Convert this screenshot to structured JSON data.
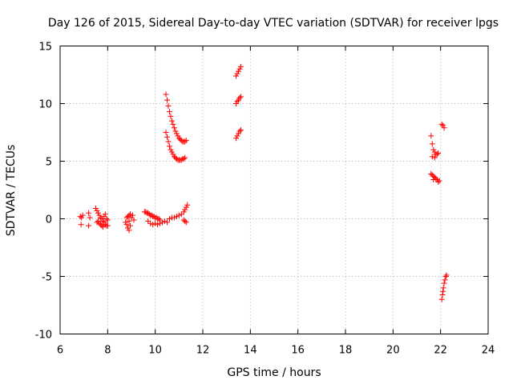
{
  "chart_data": {
    "type": "scatter",
    "title": "Day 126 of 2015, Sidereal Day-to-day VTEC variation (SDTVAR) for receiver lpgs",
    "xlabel": "GPS time / hours",
    "ylabel": "SDTVAR / TECUs",
    "xlim": [
      6,
      24
    ],
    "ylim": [
      -10,
      15
    ],
    "xticks": [
      6,
      8,
      10,
      12,
      14,
      16,
      18,
      20,
      22,
      24
    ],
    "yticks": [
      -10,
      -5,
      0,
      5,
      10,
      15
    ],
    "grid": true,
    "marker": "plus",
    "series": [
      {
        "name": "SDTVAR",
        "color": "#ff0000",
        "points": [
          [
            6.85,
            0.2
          ],
          [
            6.9,
            0.1
          ],
          [
            6.88,
            -0.5
          ],
          [
            6.95,
            0.3
          ],
          [
            7.2,
            0.5
          ],
          [
            7.2,
            -0.6
          ],
          [
            7.25,
            0.1
          ],
          [
            7.5,
            0.9
          ],
          [
            7.55,
            0.7
          ],
          [
            7.6,
            0.5
          ],
          [
            7.65,
            0.3
          ],
          [
            7.7,
            0.1
          ],
          [
            7.75,
            0.0
          ],
          [
            7.8,
            -0.2
          ],
          [
            7.85,
            -0.3
          ],
          [
            7.9,
            -0.5
          ],
          [
            7.95,
            -0.6
          ],
          [
            8.0,
            -0.6
          ],
          [
            7.55,
            -0.3
          ],
          [
            7.6,
            -0.2
          ],
          [
            7.65,
            -0.4
          ],
          [
            7.7,
            -0.5
          ],
          [
            7.75,
            -0.6
          ],
          [
            7.8,
            -0.7
          ],
          [
            7.85,
            0.2
          ],
          [
            7.9,
            0.4
          ],
          [
            7.95,
            0.0
          ],
          [
            8.0,
            -0.1
          ],
          [
            8.75,
            -0.3
          ],
          [
            8.8,
            -0.5
          ],
          [
            8.85,
            -0.8
          ],
          [
            8.9,
            -1.0
          ],
          [
            8.95,
            -0.6
          ],
          [
            8.8,
            0.1
          ],
          [
            8.85,
            0.2
          ],
          [
            8.9,
            0.3
          ],
          [
            8.95,
            0.4
          ],
          [
            9.0,
            0.1
          ],
          [
            9.05,
            0.3
          ],
          [
            9.1,
            -0.1
          ],
          [
            8.9,
            -0.2
          ],
          [
            9.55,
            0.6
          ],
          [
            9.6,
            0.6
          ],
          [
            9.65,
            0.5
          ],
          [
            9.7,
            0.5
          ],
          [
            9.75,
            0.4
          ],
          [
            9.8,
            0.3
          ],
          [
            9.85,
            0.3
          ],
          [
            9.9,
            0.2
          ],
          [
            9.95,
            0.2
          ],
          [
            10.0,
            0.1
          ],
          [
            10.05,
            0.1
          ],
          [
            10.1,
            0.0
          ],
          [
            10.15,
            0.0
          ],
          [
            10.2,
            -0.1
          ],
          [
            9.7,
            -0.2
          ],
          [
            9.8,
            -0.4
          ],
          [
            9.9,
            -0.5
          ],
          [
            10.0,
            -0.4
          ],
          [
            10.1,
            -0.5
          ],
          [
            10.2,
            -0.4
          ],
          [
            10.3,
            -0.3
          ],
          [
            10.4,
            -0.2
          ],
          [
            10.5,
            -0.3
          ],
          [
            10.6,
            0.0
          ],
          [
            10.7,
            0.1
          ],
          [
            10.8,
            0.1
          ],
          [
            10.9,
            0.2
          ],
          [
            11.0,
            0.3
          ],
          [
            11.1,
            0.4
          ],
          [
            11.2,
            0.6
          ],
          [
            11.25,
            0.8
          ],
          [
            11.3,
            1.0
          ],
          [
            11.35,
            1.2
          ],
          [
            11.2,
            -0.1
          ],
          [
            11.25,
            -0.2
          ],
          [
            11.3,
            -0.3
          ],
          [
            10.45,
            10.8
          ],
          [
            10.5,
            10.3
          ],
          [
            10.55,
            9.8
          ],
          [
            10.6,
            9.3
          ],
          [
            10.65,
            8.9
          ],
          [
            10.7,
            8.5
          ],
          [
            10.75,
            8.2
          ],
          [
            10.8,
            7.9
          ],
          [
            10.85,
            7.6
          ],
          [
            10.9,
            7.4
          ],
          [
            10.95,
            7.2
          ],
          [
            11.0,
            7.0
          ],
          [
            11.05,
            6.9
          ],
          [
            11.1,
            6.8
          ],
          [
            11.15,
            6.7
          ],
          [
            11.2,
            6.7
          ],
          [
            11.25,
            6.7
          ],
          [
            11.3,
            6.8
          ],
          [
            10.45,
            7.5
          ],
          [
            10.5,
            7.1
          ],
          [
            10.55,
            6.7
          ],
          [
            10.6,
            6.3
          ],
          [
            10.65,
            6.0
          ],
          [
            10.7,
            5.8
          ],
          [
            10.75,
            5.6
          ],
          [
            10.8,
            5.4
          ],
          [
            10.85,
            5.3
          ],
          [
            10.9,
            5.2
          ],
          [
            10.95,
            5.1
          ],
          [
            11.0,
            5.1
          ],
          [
            11.05,
            5.1
          ],
          [
            11.1,
            5.1
          ],
          [
            11.15,
            5.2
          ],
          [
            11.2,
            5.2
          ],
          [
            11.25,
            5.3
          ],
          [
            13.4,
            12.4
          ],
          [
            13.45,
            12.6
          ],
          [
            13.5,
            12.8
          ],
          [
            13.55,
            13.0
          ],
          [
            13.6,
            13.2
          ],
          [
            13.4,
            10.0
          ],
          [
            13.45,
            10.2
          ],
          [
            13.5,
            10.3
          ],
          [
            13.55,
            10.5
          ],
          [
            13.6,
            10.6
          ],
          [
            13.4,
            7.0
          ],
          [
            13.45,
            7.2
          ],
          [
            13.5,
            7.4
          ],
          [
            13.55,
            7.6
          ],
          [
            13.6,
            7.7
          ],
          [
            21.6,
            7.2
          ],
          [
            21.65,
            6.5
          ],
          [
            21.7,
            6.0
          ],
          [
            21.75,
            5.8
          ],
          [
            21.8,
            5.6
          ],
          [
            21.85,
            5.6
          ],
          [
            21.9,
            5.7
          ],
          [
            21.65,
            5.4
          ],
          [
            21.75,
            5.3
          ],
          [
            21.6,
            3.9
          ],
          [
            21.65,
            3.8
          ],
          [
            21.7,
            3.7
          ],
          [
            21.75,
            3.6
          ],
          [
            21.8,
            3.5
          ],
          [
            21.85,
            3.4
          ],
          [
            21.9,
            3.2
          ],
          [
            21.95,
            3.3
          ],
          [
            21.7,
            3.4
          ],
          [
            22.05,
            8.2
          ],
          [
            22.1,
            8.1
          ],
          [
            22.15,
            7.9
          ],
          [
            22.05,
            -7.0
          ],
          [
            22.08,
            -6.6
          ],
          [
            22.1,
            -6.3
          ],
          [
            22.12,
            -6.0
          ],
          [
            22.15,
            -5.6
          ],
          [
            22.18,
            -5.3
          ],
          [
            22.22,
            -5.0
          ],
          [
            22.25,
            -4.9
          ]
        ]
      }
    ]
  }
}
